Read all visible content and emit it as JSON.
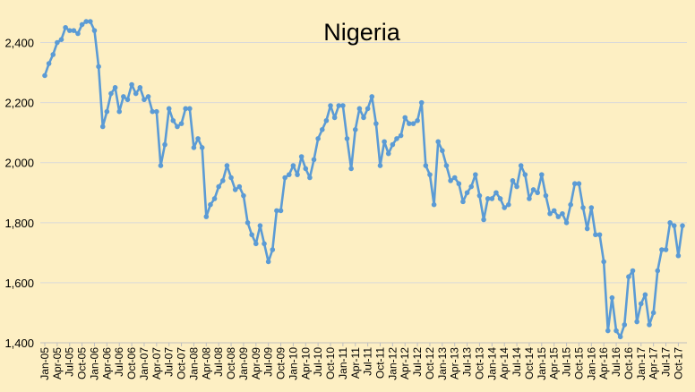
{
  "chart_data": {
    "type": "line",
    "title": "Nigeria",
    "xlabel": "",
    "ylabel": "",
    "ylim": [
      1400,
      2500
    ],
    "yticks": [
      "1,400",
      "1,600",
      "1,800",
      "2,000",
      "2,200",
      "2,400"
    ],
    "ytick_values": [
      1400,
      1600,
      1800,
      2000,
      2200,
      2400
    ],
    "grid": true,
    "series_color": "#5B9BD5",
    "marker": "circle",
    "xtick_labels": [
      "Jan-05",
      "Apr-05",
      "Jul-05",
      "Oct-05",
      "Jan-06",
      "Apr-06",
      "Jul-06",
      "Oct-06",
      "Jan-07",
      "Apr-07",
      "Jul-07",
      "Oct-07",
      "Jan-08",
      "Apr-08",
      "Jul-08",
      "Oct-08",
      "Jan-09",
      "Apr-09",
      "Jul-09",
      "Oct-09",
      "Jan-10",
      "Apr-10",
      "Jul-10",
      "Oct-10",
      "Jan-11",
      "Apr-11",
      "Jul-11",
      "Oct-11",
      "Jan-12",
      "Apr-12",
      "Jul-12",
      "Oct-12",
      "Jan-13",
      "Apr-13",
      "Jul-13",
      "Oct-13",
      "Jan-14",
      "Apr-14",
      "Jul-14",
      "Oct-14",
      "Jan-15",
      "Apr-15",
      "Jul-15",
      "Oct-15",
      "Jan-16",
      "Apr-16",
      "Jul-16",
      "Oct-16",
      "Jan-17",
      "Apr-17",
      "Jul-17",
      "Oct-17"
    ],
    "series": [
      {
        "start": "Jan-05",
        "values": [
          2290,
          2330,
          2360,
          2400,
          2410,
          2450,
          2440,
          2440,
          2430,
          2460,
          2470,
          2470,
          2440,
          2320,
          2120,
          2170,
          2230,
          2250,
          2170,
          2220,
          2210,
          2260,
          2230,
          2250,
          2210,
          2220,
          2170,
          2170,
          1990,
          2060,
          2180,
          2140,
          2120,
          2130,
          2180,
          2180,
          2050,
          2080,
          2050,
          1820,
          1860,
          1880,
          1920,
          1940,
          1990,
          1950,
          1910,
          1920,
          1890,
          1800,
          1760,
          1730,
          1790,
          1730,
          1670,
          1710,
          1840,
          1840,
          1950,
          1960,
          1990,
          1960,
          2020,
          1980,
          1950,
          2010,
          2080,
          2110,
          2140,
          2190,
          2150,
          2190,
          2190,
          2080,
          1980,
          2110,
          2180,
          2150,
          2180,
          2220,
          2130,
          1990,
          2070,
          2030,
          2060,
          2080,
          2090,
          2150,
          2130,
          2130,
          2140,
          2200,
          1990,
          1960,
          1860,
          2070,
          2040,
          1990,
          1940,
          1950,
          1930,
          1870,
          1900,
          1920,
          1960,
          1890,
          1810,
          1880,
          1880,
          1900,
          1880,
          1850,
          1860,
          1940,
          1920,
          1990,
          1960,
          1880,
          1910,
          1900,
          1960,
          1890,
          1830,
          1840,
          1820,
          1830,
          1800,
          1860,
          1930,
          1930,
          1850,
          1780,
          1850,
          1760,
          1760,
          1670,
          1440,
          1550,
          1440,
          1420,
          1460,
          1620,
          1640,
          1470,
          1530,
          1560,
          1460,
          1500,
          1640,
          1710,
          1710,
          1800,
          1790,
          1690,
          1790
        ]
      }
    ]
  }
}
